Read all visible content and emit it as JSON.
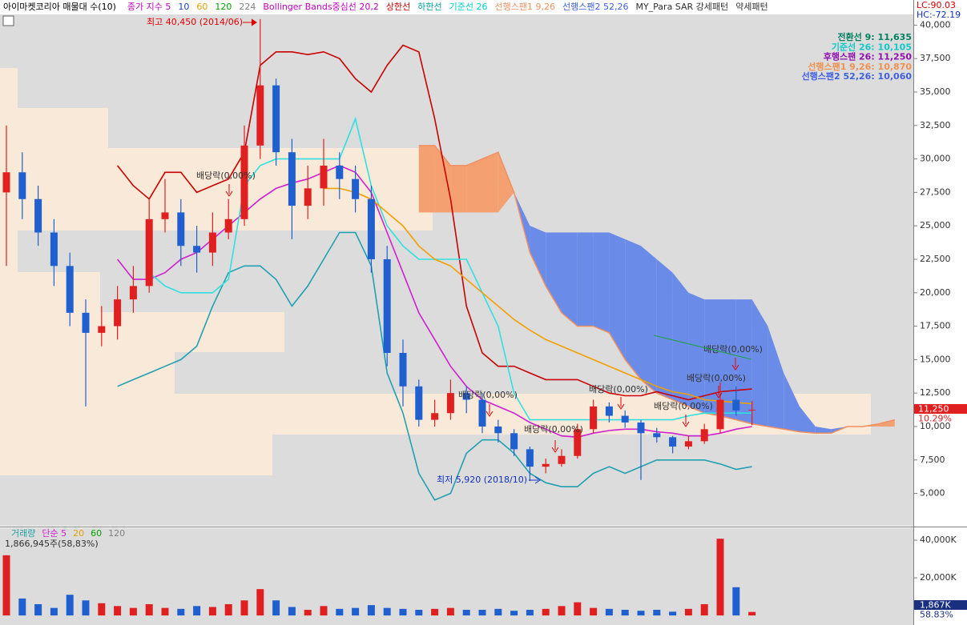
{
  "chart_data": [
    {
      "type": "candlestick",
      "title": "아이마켓코리아 매물대 수(10)",
      "legend": [
        {
          "label": "종가 지수 5",
          "color": "#c000c0"
        },
        {
          "label": "10",
          "color": "#2040c0"
        },
        {
          "label": "60",
          "color": "#e0a000"
        },
        {
          "label": "120",
          "color": "#00a000"
        },
        {
          "label": "224",
          "color": "#808080"
        },
        {
          "label": "Bollinger Bands중심선 20,2",
          "color": "#c000c0"
        },
        {
          "label": "상한선",
          "color": "#d00000"
        },
        {
          "label": "하한선",
          "color": "#00a0a0"
        },
        {
          "label": "기준선 26",
          "color": "#00d0d0"
        },
        {
          "label": "선행스팬1 9,26",
          "color": "#f09060"
        },
        {
          "label": "선행스팬2 52,26",
          "color": "#4060e0"
        },
        {
          "label": "MY_Para SAR 강세패턴",
          "color": "#303030"
        },
        {
          "label": "약세패턴",
          "color": "#303030"
        }
      ],
      "lc": "LC:90.03",
      "hc": "HC:-72.19",
      "up_color": "#e02020",
      "down_color": "#1f5fd0",
      "open": [
        27500,
        29000,
        27000,
        24500,
        22000,
        18500,
        17000,
        17500,
        19500,
        20500,
        25500,
        26000,
        23500,
        23000,
        24500,
        25500,
        31000,
        35500,
        30500,
        26500,
        27800,
        29500,
        28500,
        27000,
        22500,
        15500,
        13000,
        10500,
        11000,
        12500,
        12000,
        10000,
        9500,
        8300,
        7000,
        7200,
        7800,
        9800,
        11500,
        10800,
        10300,
        9500,
        9200,
        8500,
        8900,
        9800,
        12000,
        11200
      ],
      "high": [
        32500,
        30500,
        28000,
        25500,
        23000,
        19500,
        19000,
        20500,
        22000,
        27000,
        28500,
        27000,
        25000,
        26000,
        27000,
        32500,
        40450,
        36000,
        31500,
        29500,
        31500,
        30500,
        29500,
        28000,
        23500,
        16500,
        13500,
        12000,
        13500,
        13000,
        12500,
        10500,
        9800,
        8500,
        7600,
        8300,
        10200,
        12000,
        11800,
        11200,
        10500,
        9900,
        9300,
        9300,
        10200,
        13300,
        13000,
        11900
      ],
      "low": [
        22000,
        25500,
        23500,
        20500,
        17500,
        11500,
        16000,
        16500,
        18500,
        20000,
        24500,
        22000,
        21500,
        22000,
        24000,
        25000,
        30000,
        29500,
        24000,
        25500,
        26500,
        27000,
        26000,
        21500,
        14500,
        11500,
        10000,
        10000,
        10500,
        11000,
        9500,
        8800,
        7800,
        5920,
        6500,
        7000,
        7600,
        9500,
        10300,
        9900,
        6000,
        8800,
        8000,
        8300,
        8700,
        9500,
        10800,
        10100
      ],
      "close": [
        29000,
        27000,
        24500,
        22000,
        18500,
        17000,
        17500,
        19500,
        20500,
        25500,
        26000,
        23500,
        23000,
        24500,
        25500,
        31000,
        35500,
        30500,
        26500,
        27800,
        29500,
        28500,
        27000,
        22500,
        15500,
        13000,
        10500,
        11000,
        12500,
        12000,
        10000,
        9500,
        8300,
        7000,
        7200,
        7800,
        9800,
        11500,
        10800,
        10300,
        9500,
        9200,
        8500,
        8900,
        9800,
        12000,
        11200,
        11250
      ],
      "lines": [
        {
          "color": "#c80000",
          "values": [
            null,
            null,
            null,
            null,
            null,
            null,
            null,
            29500,
            28000,
            27000,
            29000,
            29000,
            27500,
            28000,
            28500,
            30500,
            37000,
            38000,
            38000,
            37800,
            38000,
            37500,
            36000,
            35000,
            37000,
            38500,
            38000,
            33000,
            27000,
            19000,
            15500,
            14500,
            14500,
            14000,
            13500,
            13500,
            13500,
            13000,
            12500,
            12300,
            12300,
            12600,
            12300,
            12000,
            12300,
            12600,
            12700,
            12800
          ]
        },
        {
          "color": "#20a0b0",
          "values": [
            null,
            null,
            null,
            null,
            null,
            null,
            null,
            13000,
            13500,
            14000,
            14500,
            15000,
            16000,
            19000,
            21500,
            22000,
            22000,
            21000,
            19000,
            20500,
            22500,
            24500,
            24500,
            22000,
            14000,
            11000,
            6500,
            4500,
            5000,
            8000,
            9000,
            9000,
            8000,
            6500,
            5800,
            5500,
            5500,
            6500,
            7000,
            6500,
            7000,
            7500,
            7500,
            7500,
            7500,
            7200,
            6800,
            7000
          ]
        },
        {
          "color": "#d020d0",
          "values": [
            null,
            null,
            null,
            null,
            null,
            null,
            null,
            22500,
            21000,
            21000,
            21500,
            22500,
            23000,
            24000,
            25000,
            26000,
            27000,
            27800,
            28200,
            28500,
            29000,
            29500,
            29000,
            27500,
            24500,
            21500,
            18500,
            16500,
            14500,
            13000,
            12000,
            11500,
            11000,
            10300,
            9800,
            9300,
            9200,
            9500,
            9700,
            9800,
            9800,
            9600,
            9500,
            9300,
            9300,
            9500,
            9800,
            10000
          ]
        },
        {
          "color": "#30e0e0",
          "values": [
            null,
            null,
            null,
            null,
            null,
            null,
            null,
            null,
            null,
            21500,
            20500,
            20000,
            20000,
            20000,
            21000,
            28000,
            29500,
            30000,
            30000,
            30000,
            30000,
            30000,
            33000,
            28000,
            25000,
            23500,
            22500,
            22500,
            22500,
            22500,
            20000,
            17500,
            12500,
            10500,
            10500,
            10500,
            10500,
            10500,
            10500,
            10500,
            10500,
            10500,
            10500,
            10800,
            11000,
            11000,
            11000,
            11000
          ]
        },
        {
          "color": "#f0a000",
          "values": [
            null,
            null,
            null,
            null,
            null,
            null,
            null,
            null,
            null,
            null,
            null,
            null,
            null,
            null,
            null,
            null,
            null,
            null,
            null,
            null,
            27800,
            27800,
            27500,
            27000,
            26000,
            25000,
            23500,
            22500,
            22000,
            21000,
            20000,
            19000,
            18000,
            17200,
            16500,
            16000,
            15500,
            15000,
            14500,
            14000,
            13500,
            13000,
            12600,
            12400,
            12000,
            11900,
            11800,
            11700
          ]
        }
      ],
      "span1": {
        "color": "#f4a070",
        "values": [
          null,
          null,
          null,
          null,
          null,
          null,
          null,
          null,
          null,
          null,
          null,
          null,
          null,
          null,
          null,
          null,
          null,
          null,
          null,
          null,
          null,
          null,
          null,
          null,
          null,
          null,
          31000,
          31000,
          29500,
          29500,
          30000,
          30500,
          27500,
          23000,
          20500,
          18500,
          17500,
          17500,
          17000,
          15000,
          13500,
          12500,
          12000,
          11500,
          11000,
          10800,
          10500,
          10200,
          10000,
          9800,
          9600,
          9500,
          9500,
          10000,
          10000,
          10200,
          10500
        ]
      },
      "span2": {
        "color": "#6b8be8",
        "values": [
          null,
          null,
          null,
          null,
          null,
          null,
          null,
          null,
          null,
          null,
          null,
          null,
          null,
          null,
          null,
          null,
          null,
          null,
          null,
          null,
          null,
          null,
          null,
          null,
          null,
          null,
          26000,
          26000,
          26000,
          26000,
          26000,
          26000,
          27500,
          25000,
          24500,
          24500,
          24500,
          24500,
          24500,
          24000,
          23500,
          22500,
          21500,
          20000,
          19500,
          19500,
          19500,
          19500,
          17500,
          14000,
          11500,
          10000,
          9800,
          10000,
          10000,
          10000,
          10000
        ]
      },
      "ylim": [
        2700,
        41400
      ],
      "yticks": [
        {
          "value": 5000,
          "label": "5,000"
        },
        {
          "value": 7500,
          "label": "7,500"
        },
        {
          "value": 10000,
          "label": "10,000"
        },
        {
          "value": 12500,
          "label": "12,500"
        },
        {
          "value": 15000,
          "label": "15,000"
        },
        {
          "value": 17500,
          "label": "17,500"
        },
        {
          "value": 20000,
          "label": "20,000"
        },
        {
          "value": 22500,
          "label": "22,500"
        },
        {
          "value": 25000,
          "label": "25,000"
        },
        {
          "value": 27500,
          "label": "27,500"
        },
        {
          "value": 30000,
          "label": "30,000"
        },
        {
          "value": 32500,
          "label": "32,500"
        },
        {
          "value": 35000,
          "label": "35,000"
        },
        {
          "value": 37500,
          "label": "37,500"
        },
        {
          "value": 40000,
          "label": "40,000"
        }
      ],
      "info_box": [
        {
          "text": "전환선 9: 11,635",
          "color": "#008060"
        },
        {
          "text": "기준선 26: 10,105",
          "color": "#10c8c8"
        },
        {
          "text": "후행스팬 26: 11,250",
          "color": "#9010b0"
        },
        {
          "text": "선행스팬1 9,26: 10,870",
          "color": "#f09050"
        },
        {
          "text": "선행스팬2 52,26: 10,060",
          "color": "#4060e0"
        }
      ],
      "annotations": [
        "최고 40,450 (2014/06)",
        "배당락(0,00%)",
        "배당락(0,00%)",
        "배당락(0,00%)",
        "배당락(0,00%)",
        "배당락(0,00%)",
        "배당락(0,00%)",
        "배당락(0,00%)",
        "최저 5,920 (2018/10)"
      ],
      "price_label": "11,250",
      "pct_label": "10.29%"
    },
    {
      "type": "bar",
      "title": "거래량",
      "legend": [
        {
          "label": "단순 5",
          "color": "#d020d0"
        },
        {
          "label": "20",
          "color": "#e0a000"
        },
        {
          "label": "60",
          "color": "#00a000"
        },
        {
          "label": "120",
          "color": "#808080"
        }
      ],
      "subtitle": "1,866,945주(58,83%)",
      "values": [
        32000,
        9000,
        6000,
        4000,
        11000,
        8000,
        6500,
        5000,
        4000,
        6000,
        4000,
        3500,
        5000,
        4500,
        6000,
        8000,
        14000,
        8000,
        4500,
        3000,
        5000,
        3500,
        4000,
        5500,
        4000,
        3500,
        3000,
        3500,
        4000,
        3000,
        3000,
        3500,
        2500,
        3000,
        3500,
        5000,
        7000,
        4000,
        3500,
        3000,
        2500,
        3000,
        2000,
        3500,
        6000,
        40800,
        15000,
        1867
      ],
      "ylim": [
        -3800,
        46400
      ],
      "yticks": [
        {
          "value": 20000,
          "label": "20,000K"
        },
        {
          "value": 40000,
          "label": "40,000K"
        }
      ],
      "last_label": "1,867K",
      "pct_label": "58.83%"
    }
  ]
}
